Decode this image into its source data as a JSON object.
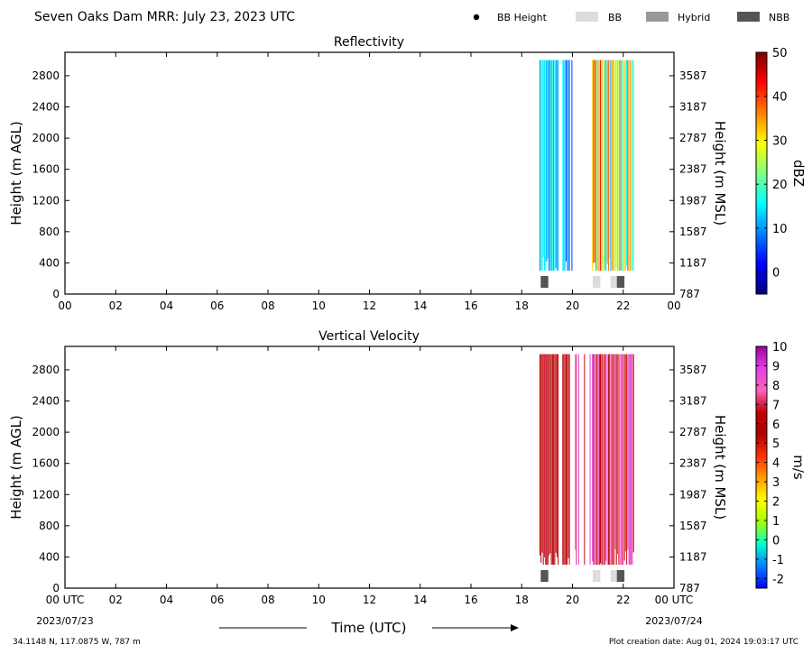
{
  "header": {
    "title": "Seven Oaks Dam MRR:  July 23, 2023 UTC",
    "legend": [
      {
        "label": "BB Height",
        "marker": "dot",
        "color": "#000000"
      },
      {
        "label": "BB",
        "marker": "rect",
        "color": "#dcdcdc"
      },
      {
        "label": "Hybrid",
        "marker": "rect",
        "color": "#999999"
      },
      {
        "label": "NBB",
        "marker": "rect",
        "color": "#555555"
      }
    ]
  },
  "footer": {
    "location": "34.1148 N, 117.0875 W, 787 m",
    "creation": "Plot creation date: Aug 01, 2024 19:03:17 UTC",
    "time_label": "Time (UTC)",
    "start_date": "2023/07/23",
    "end_date": "2023/07/24"
  },
  "chart_data": [
    {
      "type": "heatmap",
      "title": "Reflectivity",
      "ylabel": "Height (m AGL)",
      "ylabel_right": "Height (m MSL)",
      "x_ticks": [
        "00",
        "02",
        "04",
        "06",
        "08",
        "10",
        "12",
        "14",
        "16",
        "18",
        "20",
        "22",
        "00"
      ],
      "xlim": [
        0,
        24
      ],
      "ylim": [
        0,
        3100
      ],
      "y_ticks_left": [
        0,
        400,
        800,
        1200,
        1600,
        2000,
        2400,
        2800
      ],
      "y_ticks_right": [
        "787",
        "1187",
        "1587",
        "1987",
        "2387",
        "2787",
        "3187",
        "3587"
      ],
      "colorbar": {
        "label": "dBZ",
        "range": [
          -5,
          50
        ],
        "ticks": [
          "0",
          "10",
          "20",
          "30",
          "40",
          "50"
        ],
        "tick_values": [
          0,
          10,
          20,
          30,
          40,
          50
        ],
        "colors": [
          "#00007f",
          "#0000ff",
          "#0080ff",
          "#00ffff",
          "#80ff80",
          "#ffff00",
          "#ff8000",
          "#ff0000",
          "#7f0000"
        ]
      },
      "data_time_range_utc": [
        18.7,
        22.4
      ],
      "data_height_range_m": [
        300,
        3000
      ],
      "bright_band": [
        {
          "start": 18.75,
          "end": 19.05,
          "type": "NBB"
        },
        {
          "start": 20.8,
          "end": 21.1,
          "type": "BB"
        },
        {
          "start": 21.5,
          "end": 21.75,
          "type": "BB"
        },
        {
          "start": 21.75,
          "end": 22.05,
          "type": "NBB"
        }
      ]
    },
    {
      "type": "heatmap",
      "title": "Vertical Velocity",
      "ylabel": "Height (m AGL)",
      "ylabel_right": "Height (m MSL)",
      "x_ticks": [
        "00 UTC",
        "02",
        "04",
        "06",
        "08",
        "10",
        "12",
        "14",
        "16",
        "18",
        "20",
        "22",
        "00 UTC"
      ],
      "xlim": [
        0,
        24
      ],
      "ylim": [
        0,
        3100
      ],
      "y_ticks_left": [
        0,
        400,
        800,
        1200,
        1600,
        2000,
        2400,
        2800
      ],
      "y_ticks_right": [
        "787",
        "1187",
        "1587",
        "1987",
        "2387",
        "2787",
        "3187",
        "3587"
      ],
      "colorbar": {
        "label": "m/s",
        "range": [
          -2.5,
          10
        ],
        "ticks": [
          "-2",
          "-1",
          "0",
          "1",
          "2",
          "3",
          "4",
          "5",
          "6",
          "7",
          "8",
          "9",
          "10"
        ],
        "tick_values": [
          -2,
          -1,
          0,
          1,
          2,
          3,
          4,
          5,
          6,
          7,
          8,
          9,
          10
        ],
        "colors": [
          "#0000ff",
          "#0080ff",
          "#00ffd0",
          "#a0ff00",
          "#ffff00",
          "#ffa000",
          "#ff3000",
          "#b00000",
          "#c00000",
          "#ff60c0",
          "#e040e0",
          "#a000a0"
        ]
      },
      "data_time_range_utc": [
        18.7,
        22.4
      ],
      "data_height_range_m": [
        300,
        3000
      ],
      "bright_band": [
        {
          "start": 18.75,
          "end": 19.05,
          "type": "NBB"
        },
        {
          "start": 20.8,
          "end": 21.1,
          "type": "BB"
        },
        {
          "start": 21.5,
          "end": 21.75,
          "type": "BB"
        },
        {
          "start": 21.75,
          "end": 22.05,
          "type": "NBB"
        }
      ]
    }
  ]
}
